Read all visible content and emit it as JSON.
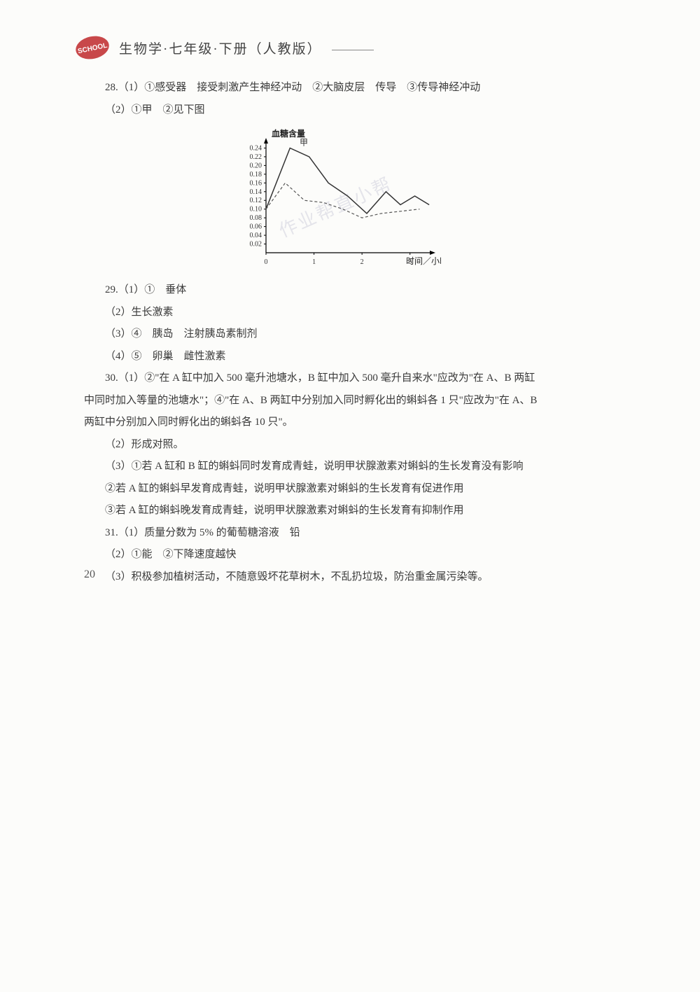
{
  "header": {
    "title": "生物学·七年级·下册（人教版）"
  },
  "logo": {
    "text": "SCHOOL",
    "bg_color": "#c8484a",
    "text_color": "#ffffff"
  },
  "lines": {
    "l1": "28.（1）①感受器　接受刺激产生神经冲动　②大脑皮层　传导　③传导神经冲动",
    "l2": "（2）①甲　②见下图",
    "l3": "29.（1）①　垂体",
    "l4": "（2）生长激素",
    "l5": "（3）④　胰岛　注射胰岛素制剂",
    "l6": "（4）⑤　卵巢　雌性激素",
    "l7": "30.（1）②\"在 A 缸中加入 500 毫升池塘水，B 缸中加入 500 毫升自来水\"应改为\"在 A、B 两缸",
    "l8": "中同时加入等量的池塘水\"；④\"在 A、B 两缸中分别加入同时孵化出的蝌蚪各 1 只\"应改为\"在 A、B",
    "l9": "两缸中分别加入同时孵化出的蝌蚪各 10 只\"。",
    "l10": "（2）形成对照。",
    "l11": "（3）①若 A 缸和 B 缸的蝌蚪同时发育成青蛙，说明甲状腺激素对蝌蚪的生长发育没有影响",
    "l12": "②若 A 缸的蝌蚪早发育成青蛙，说明甲状腺激素对蝌蚪的生长发育有促进作用",
    "l13": "③若 A 缸的蝌蚪晚发育成青蛙，说明甲状腺激素对蝌蚪的生长发育有抑制作用",
    "l14": "31.（1）质量分数为 5% 的葡萄糖溶液　铅",
    "l15": "（2）①能　②下降速度越快",
    "l16": "（3）积极参加植树活动，不随意毁坏花草树木，不乱扔垃圾，防治重金属污染等。"
  },
  "chart": {
    "type": "line",
    "y_axis_label": "血糖含量",
    "x_axis_label": "时间／小时",
    "series_label": "甲",
    "y_ticks": [
      "0.02",
      "0.04",
      "0.06",
      "0.08",
      "0.10",
      "0.12",
      "0.14",
      "0.16",
      "0.18",
      "0.20",
      "0.22",
      "0.24"
    ],
    "x_ticks": [
      "0",
      "1",
      "2",
      "3"
    ],
    "ylim": [
      0,
      0.26
    ],
    "xlim": [
      0,
      3.5
    ],
    "line_color": "#333333",
    "dashed_line_color": "#555555",
    "axis_color": "#000000",
    "background_color": "transparent",
    "tick_fontsize": 10,
    "label_fontsize": 12,
    "solid_series": [
      {
        "x": 0,
        "y": 0.1
      },
      {
        "x": 0.5,
        "y": 0.24
      },
      {
        "x": 0.9,
        "y": 0.22
      },
      {
        "x": 1.3,
        "y": 0.16
      },
      {
        "x": 1.7,
        "y": 0.13
      },
      {
        "x": 2.1,
        "y": 0.09
      },
      {
        "x": 2.5,
        "y": 0.14
      },
      {
        "x": 2.8,
        "y": 0.11
      },
      {
        "x": 3.1,
        "y": 0.13
      },
      {
        "x": 3.4,
        "y": 0.11
      }
    ],
    "dashed_series": [
      {
        "x": 0,
        "y": 0.1
      },
      {
        "x": 0.4,
        "y": 0.16
      },
      {
        "x": 0.8,
        "y": 0.12
      },
      {
        "x": 1.2,
        "y": 0.115
      },
      {
        "x": 1.6,
        "y": 0.1
      },
      {
        "x": 2.0,
        "y": 0.08
      },
      {
        "x": 2.4,
        "y": 0.09
      },
      {
        "x": 2.8,
        "y": 0.095
      },
      {
        "x": 3.2,
        "y": 0.1
      }
    ]
  },
  "watermark": "作业帮直小帮",
  "page_number": "20"
}
